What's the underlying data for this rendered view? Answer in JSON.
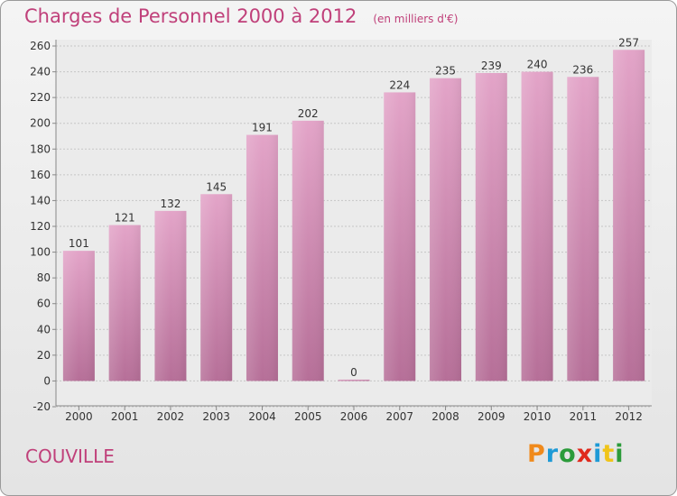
{
  "header": {
    "title": "Charges de Personnel 2000 à 2012",
    "unit": "(en milliers d'€)"
  },
  "footer": {
    "commune": "COUVILLE",
    "brand": "Proxiti",
    "brand_colors": [
      "#f08a1c",
      "#1e9ad6",
      "#2b9b3a",
      "#e0291c",
      "#1e9ad6",
      "#f0c419",
      "#2b9b3a"
    ]
  },
  "chart_data": {
    "type": "bar",
    "categories": [
      "2000",
      "2001",
      "2002",
      "2003",
      "2004",
      "2005",
      "2006",
      "2007",
      "2008",
      "2009",
      "2010",
      "2011",
      "2012"
    ],
    "values": [
      101,
      121,
      132,
      145,
      191,
      202,
      0,
      224,
      235,
      239,
      240,
      236,
      257
    ],
    "title": "Charges de Personnel 2000 à 2012",
    "xlabel": "",
    "ylabel": "",
    "ylim": [
      -20,
      260
    ],
    "yticks": [
      -20,
      0,
      20,
      40,
      60,
      80,
      100,
      120,
      140,
      160,
      180,
      200,
      220,
      240,
      260
    ],
    "grid": true,
    "bar_color": "#d98cb4",
    "text_color": "#c0407a"
  }
}
